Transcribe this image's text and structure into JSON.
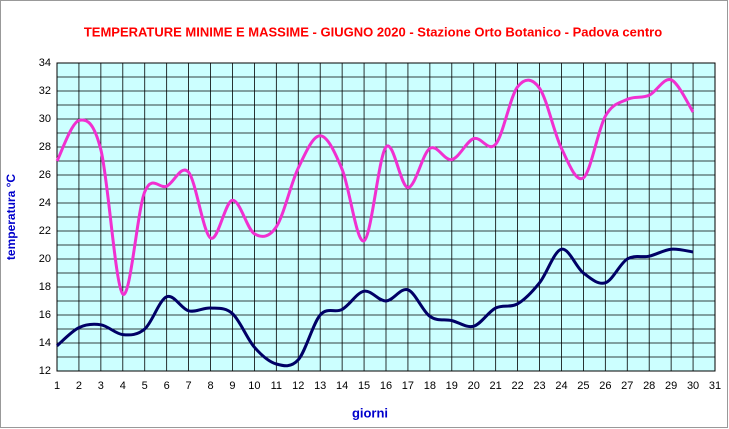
{
  "chart_data": {
    "type": "line",
    "title": "TEMPERATURE MINIME E MASSIME  - GIUGNO   2020 - Stazione Orto Botanico - Padova centro",
    "x_label": "giorni",
    "y_label": "temperatura °C",
    "x": [
      1,
      2,
      3,
      4,
      5,
      6,
      7,
      8,
      9,
      10,
      11,
      12,
      13,
      14,
      15,
      16,
      17,
      18,
      19,
      20,
      21,
      22,
      23,
      24,
      25,
      26,
      27,
      28,
      29,
      30
    ],
    "series": [
      {
        "color": "#f030d0",
        "values": [
          27.0,
          29.9,
          27.8,
          17.5,
          24.8,
          25.2,
          26.2,
          21.5,
          24.2,
          21.8,
          22.3,
          26.5,
          28.8,
          26.4,
          21.3,
          28.0,
          25.1,
          27.9,
          27.1,
          28.6,
          28.2,
          32.3,
          32.2,
          27.9,
          25.8,
          30.2,
          31.4,
          31.7,
          32.8,
          30.5
        ]
      },
      {
        "color": "#000066",
        "values": [
          13.8,
          15.1,
          15.3,
          14.6,
          15.0,
          17.3,
          16.3,
          16.5,
          16.1,
          13.7,
          12.5,
          12.8,
          16.0,
          16.4,
          17.7,
          17.0,
          17.8,
          15.9,
          15.6,
          15.2,
          16.5,
          16.8,
          18.3,
          20.7,
          19.0,
          18.3,
          20.0,
          20.2,
          20.7,
          20.5
        ]
      }
    ],
    "xlim": [
      1,
      31
    ],
    "xticks": [
      1,
      2,
      3,
      4,
      5,
      6,
      7,
      8,
      9,
      10,
      11,
      12,
      13,
      14,
      15,
      16,
      17,
      18,
      19,
      20,
      21,
      22,
      23,
      24,
      25,
      26,
      27,
      28,
      29,
      30,
      31
    ],
    "ylim": [
      12,
      34
    ],
    "yticks": [
      12,
      14,
      16,
      18,
      20,
      22,
      24,
      26,
      28,
      30,
      32,
      34
    ],
    "grid": true,
    "background": "#ccffff"
  }
}
